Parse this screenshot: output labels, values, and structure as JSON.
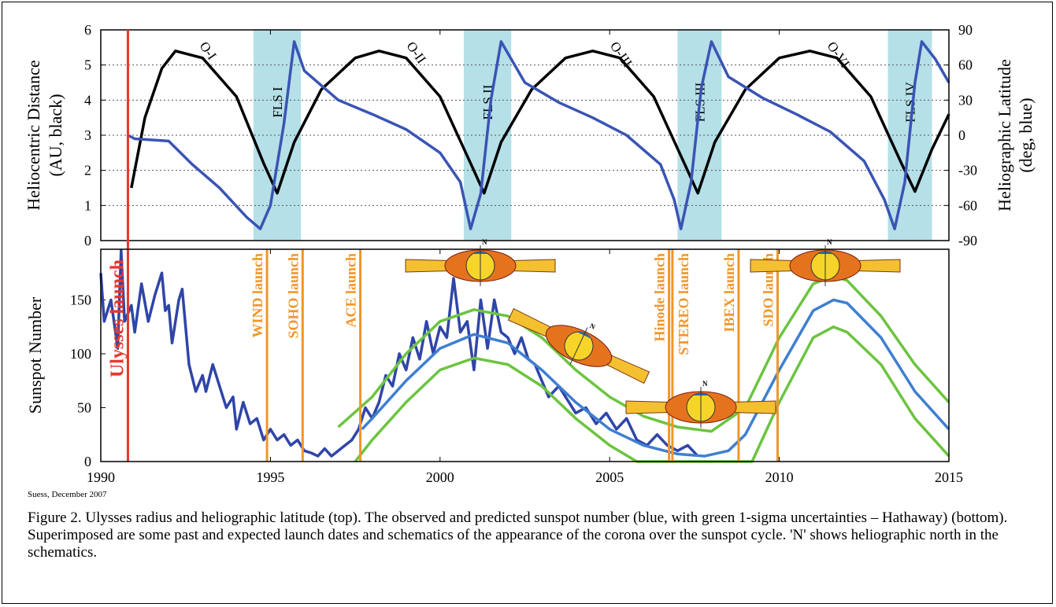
{
  "chart_data": [
    {
      "type": "line",
      "y_label": [
        "Heliocentric Distance",
        "(AU, black)"
      ],
      "y2_label": [
        "Heliographic Latitude",
        "(deg, blue)"
      ],
      "xlim": [
        1990,
        2015
      ],
      "ylim": [
        0,
        6
      ],
      "yticks": [
        0,
        1,
        2,
        3,
        4,
        5,
        6
      ],
      "y2lim": [
        -90,
        90
      ],
      "y2ticks": [
        -90,
        -60,
        -30,
        0,
        30,
        60,
        90
      ],
      "grid": true,
      "series": [
        {
          "color": "#000000",
          "x": [
            1990.9,
            1991.3,
            1991.8,
            1992.2,
            1993,
            1994,
            1994.8,
            1995.2,
            1995.7,
            1996.5,
            1997.5,
            1998.2,
            1999,
            2000,
            2000.9,
            2001.3,
            2001.8,
            2002.7,
            2003.7,
            2004.5,
            2005.3,
            2006.3,
            2007.2,
            2007.6,
            2008.1,
            2009,
            2010,
            2010.9,
            2011.7,
            2012.7,
            2013.6,
            2014.0,
            2014.5,
            2015
          ],
          "values": [
            1.5,
            3.5,
            4.9,
            5.4,
            5.2,
            4.1,
            2.2,
            1.35,
            2.8,
            4.3,
            5.2,
            5.4,
            5.2,
            4.1,
            2.2,
            1.35,
            2.8,
            4.3,
            5.2,
            5.4,
            5.2,
            4.1,
            2.2,
            1.35,
            2.8,
            4.3,
            5.2,
            5.4,
            5.2,
            4.1,
            2.2,
            1.4,
            2.6,
            3.6
          ]
        },
        {
          "color": "#3a54b4",
          "axis": "y2",
          "x": [
            1990.8,
            1991,
            1992.0,
            1992.7,
            1993.5,
            1994.3,
            1994.7,
            1995.0,
            1995.4,
            1995.7,
            1996.0,
            1997,
            1998,
            1999,
            2000,
            2000.6,
            2000.9,
            2001.2,
            2001.5,
            2001.8,
            2002.5,
            2003.5,
            2004.5,
            2005.5,
            2006.5,
            2006.9,
            2007.1,
            2007.4,
            2007.7,
            2008.0,
            2008.5,
            2009.5,
            2010.5,
            2011.5,
            2012.5,
            2013.1,
            2013.4,
            2013.7,
            2014.0,
            2014.2,
            2014.6,
            2015
          ],
          "values": [
            0,
            -3,
            -5,
            -25,
            -45,
            -70,
            -80,
            -60,
            10,
            80,
            55,
            30,
            18,
            5,
            -15,
            -40,
            -80,
            -50,
            30,
            80,
            45,
            28,
            15,
            0,
            -25,
            -55,
            -80,
            -40,
            40,
            80,
            50,
            32,
            18,
            3,
            -22,
            -55,
            -80,
            -40,
            45,
            80,
            65,
            45
          ]
        }
      ],
      "shaded_regions": [
        {
          "label": "FLS I",
          "x": [
            1994.5,
            1995.9
          ]
        },
        {
          "label": "FLS II",
          "x": [
            2000.7,
            2002.1
          ]
        },
        {
          "label": "FLS III",
          "x": [
            2007.0,
            2008.3
          ]
        },
        {
          "label": "FLS IV",
          "x": [
            2013.2,
            2014.5
          ]
        }
      ],
      "shade_color": "#b5e0e8",
      "orbit_labels": [
        "O-I",
        "O-II",
        "O-III",
        "O-VI"
      ]
    },
    {
      "type": "line",
      "y_label": "Sunspot Number",
      "xlim": [
        1990,
        2015
      ],
      "xticks": [
        1990,
        1995,
        2000,
        2005,
        2010,
        2015
      ],
      "ylim": [
        0,
        197
      ],
      "yticks": [
        0,
        50,
        100,
        150
      ],
      "series": [
        {
          "color": "#2f45a8",
          "x": [
            1990.0,
            1990.1,
            1990.3,
            1990.5,
            1990.6,
            1990.7,
            1990.9,
            1991.0,
            1991.2,
            1991.4,
            1991.6,
            1991.8,
            1991.9,
            1992.0,
            1992.1,
            1992.3,
            1992.4,
            1992.6,
            1992.8,
            1993.0,
            1993.1,
            1993.3,
            1993.5,
            1993.7,
            1993.9,
            1994.0,
            1994.2,
            1994.4,
            1994.6,
            1994.8,
            1995.0,
            1995.2,
            1995.4,
            1995.6,
            1995.8,
            1996.0,
            1996.2,
            1996.4,
            1996.6,
            1996.8,
            1997.0,
            1997.2,
            1997.4,
            1997.6,
            1997.8,
            1998.0,
            1998.2,
            1998.4,
            1998.6,
            1998.8,
            1999.0,
            1999.2,
            1999.4,
            1999.6,
            1999.8,
            2000.0,
            2000.2,
            2000.4,
            2000.6,
            2000.8,
            2001.0,
            2001.2,
            2001.4,
            2001.6,
            2001.8,
            2002.0,
            2002.2,
            2002.4,
            2002.6,
            2002.8,
            2003.0,
            2003.2,
            2003.5,
            2003.8,
            2004.0,
            2004.3,
            2004.6,
            2004.9,
            2005.2,
            2005.5,
            2005.8,
            2006.1,
            2006.4,
            2006.7,
            2007.0,
            2007.3,
            2007.6
          ],
          "values": [
            175,
            130,
            150,
            105,
            196,
            130,
            145,
            120,
            165,
            130,
            155,
            175,
            140,
            145,
            110,
            150,
            160,
            90,
            65,
            80,
            65,
            90,
            70,
            50,
            60,
            30,
            55,
            35,
            40,
            20,
            30,
            20,
            25,
            15,
            20,
            10,
            8,
            5,
            12,
            5,
            10,
            15,
            20,
            30,
            50,
            40,
            55,
            80,
            70,
            100,
            85,
            115,
            95,
            130,
            100,
            125,
            115,
            170,
            120,
            130,
            85,
            150,
            105,
            150,
            120,
            115,
            100,
            115,
            95,
            90,
            75,
            60,
            70,
            55,
            45,
            50,
            35,
            45,
            30,
            40,
            20,
            15,
            25,
            15,
            10,
            15,
            5
          ]
        },
        {
          "color": "#3f7fd0",
          "x": [
            1997.7,
            1998,
            1999,
            2000,
            2001,
            2002,
            2003,
            2004,
            2005,
            2006,
            2007,
            2007.8,
            2008.5,
            2009,
            2010,
            2011,
            2011.6,
            2012,
            2013,
            2014,
            2015
          ],
          "values": [
            30,
            40,
            75,
            105,
            118,
            110,
            85,
            55,
            30,
            15,
            7,
            5,
            10,
            25,
            85,
            140,
            150,
            147,
            115,
            65,
            30
          ]
        },
        {
          "color": "#6cc440",
          "x": [
            1997,
            1998,
            1999,
            2000,
            2001,
            2002,
            2003,
            2004,
            2005,
            2006,
            2007,
            2008,
            2009,
            2010,
            2011,
            2011.6,
            2012,
            2013,
            2014,
            2015
          ],
          "values": [
            32,
            60,
            100,
            130,
            141,
            135,
            115,
            85,
            60,
            42,
            32,
            28,
            50,
            115,
            165,
            172,
            168,
            135,
            90,
            55
          ]
        },
        {
          "color": "#6cc440",
          "x": [
            1997.5,
            1998,
            1999,
            2000,
            2001,
            2002,
            2003,
            2004,
            2005,
            2005.8,
            2009.2,
            2010,
            2011,
            2011.6,
            2012,
            2013,
            2014,
            2015
          ],
          "values": [
            0,
            20,
            55,
            85,
            96,
            90,
            70,
            40,
            15,
            0,
            0,
            55,
            115,
            125,
            120,
            90,
            40,
            5
          ]
        }
      ],
      "events": [
        {
          "label": "Ulysses launch",
          "x": 1990.8,
          "color": "#e8372c"
        },
        {
          "label": "WIND launch",
          "x": 1994.9,
          "color": "#f0962a"
        },
        {
          "label": "SOHO launch",
          "x": 1995.95,
          "color": "#f0962a"
        },
        {
          "label": "ACE launch",
          "x": 1997.65,
          "color": "#f0962a"
        },
        {
          "label": "Hinode launch",
          "x": 2006.75,
          "color": "#f0962a"
        },
        {
          "label": "STEREO launch",
          "x": 2006.85,
          "color": "#f0962a"
        },
        {
          "label": "IBEX launch",
          "x": 2008.8,
          "color": "#f0962a"
        },
        {
          "label": "SDO launch",
          "x": 2009.95,
          "color": "#f0962a"
        }
      ],
      "schematic_label": "N"
    }
  ],
  "credit": "Suess, December 2007",
  "caption": "Figure 2. Ulysses radius and heliographic latitude (top). The observed and predicted sunspot number (blue, with green 1-sigma uncertainties – Hathaway) (bottom). Superimposed are some past and expected launch dates and schematics of the appearance of the corona over the sunspot cycle. 'N' shows heliographic north in the schematics."
}
